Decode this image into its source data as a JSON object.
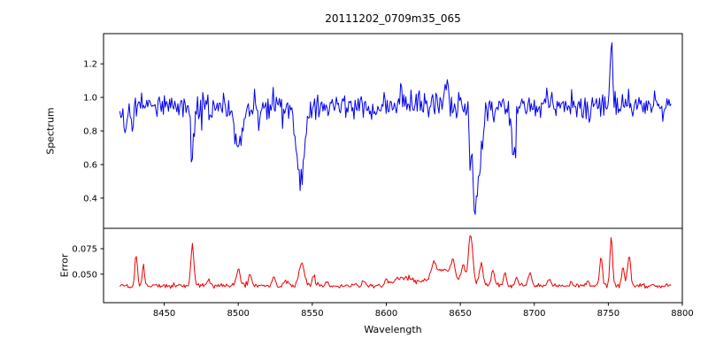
{
  "figure": {
    "background": "#ffffff",
    "text_color": "#000000"
  },
  "chart_data": {
    "type": "line",
    "title": "20111202_0709m35_065",
    "xlabel": "Wavelength",
    "xlim": [
      8409,
      8800
    ],
    "x_ticks": [
      8450,
      8500,
      8550,
      8600,
      8650,
      8700,
      8750,
      8800
    ],
    "x_start": 8420,
    "x_end": 8793,
    "x_step": 0.7,
    "grid": false,
    "legend": "none",
    "panels": [
      {
        "name": "spectrum",
        "ylabel": "Spectrum",
        "color": "#0000ee",
        "ylim": [
          0.22,
          1.38
        ],
        "y_ticks": [
          "0.4",
          "0.6",
          "0.8",
          "1.0",
          "1.2"
        ],
        "y_tick_values": [
          0.4,
          0.6,
          0.8,
          1.0,
          1.2
        ],
        "baseline": 0.95,
        "noise_scale": 1.0,
        "absorption_lines": [
          {
            "c": 8424,
            "d": 0.15,
            "w": 1.2
          },
          {
            "c": 8429,
            "d": 0.12,
            "w": 1.0
          },
          {
            "c": 8469,
            "d": 0.3,
            "w": 1.3
          },
          {
            "c": 8500,
            "d": 0.3,
            "w": 2.2
          },
          {
            "c": 8514,
            "d": 0.1,
            "w": 1.0
          },
          {
            "c": 8542,
            "d": 0.47,
            "w": 2.6
          },
          {
            "c": 8660,
            "d": 0.6,
            "w": 2.8
          },
          {
            "c": 8686,
            "d": 0.28,
            "w": 1.6
          }
        ],
        "emission_spikes": [
          {
            "c": 8610,
            "h": 0.12,
            "w": 1.0
          },
          {
            "c": 8622,
            "h": 0.1,
            "w": 0.9
          },
          {
            "c": 8641,
            "h": 0.12,
            "w": 0.9
          },
          {
            "c": 8752,
            "h": 0.33,
            "w": 0.9
          }
        ]
      },
      {
        "name": "error",
        "ylabel": "Error",
        "color": "#ee0000",
        "ylim": [
          0.022,
          0.095
        ],
        "y_ticks": [
          "0.050",
          "0.075"
        ],
        "y_tick_values": [
          0.05,
          0.075
        ],
        "baseline": 0.0385,
        "noise_sigma": 0.0012,
        "spikes": [
          {
            "c": 8431,
            "h": 0.03,
            "w": 0.8
          },
          {
            "c": 8436,
            "h": 0.02,
            "w": 0.8
          },
          {
            "c": 8469,
            "h": 0.04,
            "w": 1.0
          },
          {
            "c": 8480,
            "h": 0.006,
            "w": 1.0
          },
          {
            "c": 8500,
            "h": 0.016,
            "w": 1.2
          },
          {
            "c": 8508,
            "h": 0.012,
            "w": 1.0
          },
          {
            "c": 8524,
            "h": 0.01,
            "w": 1.0
          },
          {
            "c": 8532,
            "h": 0.006,
            "w": 1.0
          },
          {
            "c": 8543,
            "h": 0.022,
            "w": 1.8
          },
          {
            "c": 8551,
            "h": 0.01,
            "w": 1.0
          },
          {
            "c": 8560,
            "h": 0.005,
            "w": 1.0
          },
          {
            "c": 8585,
            "h": 0.005,
            "w": 1.2
          },
          {
            "c": 8600,
            "h": 0.006,
            "w": 1.0
          },
          {
            "c": 8612,
            "h": 0.008,
            "w": 6.0
          },
          {
            "c": 8632,
            "h": 0.012,
            "w": 1.2
          },
          {
            "c": 8638,
            "h": 0.016,
            "w": 8.0
          },
          {
            "c": 8645,
            "h": 0.015,
            "w": 1.3
          },
          {
            "c": 8652,
            "h": 0.018,
            "w": 1.2
          },
          {
            "c": 8657,
            "h": 0.048,
            "w": 1.5
          },
          {
            "c": 8664,
            "h": 0.022,
            "w": 1.3
          },
          {
            "c": 8672,
            "h": 0.015,
            "w": 1.1
          },
          {
            "c": 8680,
            "h": 0.012,
            "w": 1.0
          },
          {
            "c": 8688,
            "h": 0.008,
            "w": 1.0
          },
          {
            "c": 8697,
            "h": 0.012,
            "w": 1.2
          },
          {
            "c": 8710,
            "h": 0.006,
            "w": 1.0
          },
          {
            "c": 8725,
            "h": 0.004,
            "w": 1.0
          },
          {
            "c": 8736,
            "h": 0.004,
            "w": 1.0
          },
          {
            "c": 8745,
            "h": 0.03,
            "w": 0.9
          },
          {
            "c": 8752,
            "h": 0.047,
            "w": 0.9
          },
          {
            "c": 8760,
            "h": 0.018,
            "w": 0.9
          },
          {
            "c": 8764,
            "h": 0.03,
            "w": 1.0
          }
        ]
      }
    ]
  }
}
